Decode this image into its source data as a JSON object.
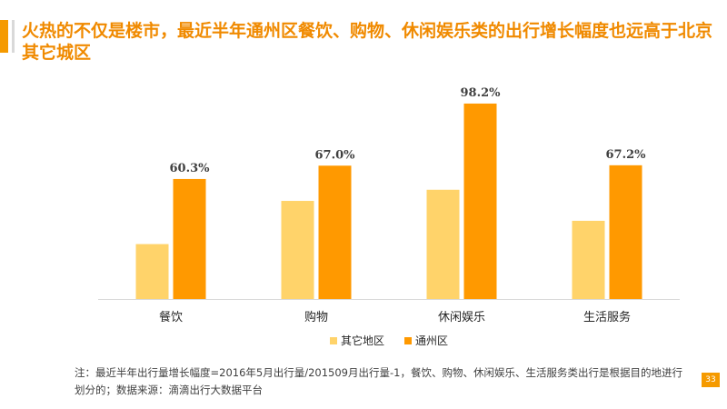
{
  "slide": {
    "title": "火热的不仅是楼市，最近半年通州区餐饮、购物、休闲娱乐类的出行增长幅度也远高于北京其它城区",
    "note": "注：最近半年出行量增长幅度=2016年5月出行量/201509月出行量-1，餐饮、购物、休闲娱乐、生活服务类出行是根据目的地进行划分的；数据来源：滴滴出行大数据平台",
    "page_number": "33",
    "colors": {
      "accent": "#f59a00",
      "title": "#f08a00"
    }
  },
  "chart_data": {
    "type": "bar",
    "title": "",
    "xlabel": "",
    "ylabel": "",
    "categories": [
      "餐饮",
      "购物",
      "休闲娱乐",
      "生活服务"
    ],
    "series": [
      {
        "name": "其它地区",
        "values": [
          27.6,
          49.3,
          54.9,
          39.3
        ],
        "color": "#ffd36a",
        "show_labels": false
      },
      {
        "name": "通州区",
        "values": [
          60.3,
          67.0,
          98.2,
          67.2
        ],
        "color": "#ff9900",
        "show_labels": true,
        "label_suffix": "%"
      }
    ],
    "ylim": [
      0,
      100
    ],
    "grid": false,
    "legend_position": "bottom"
  }
}
